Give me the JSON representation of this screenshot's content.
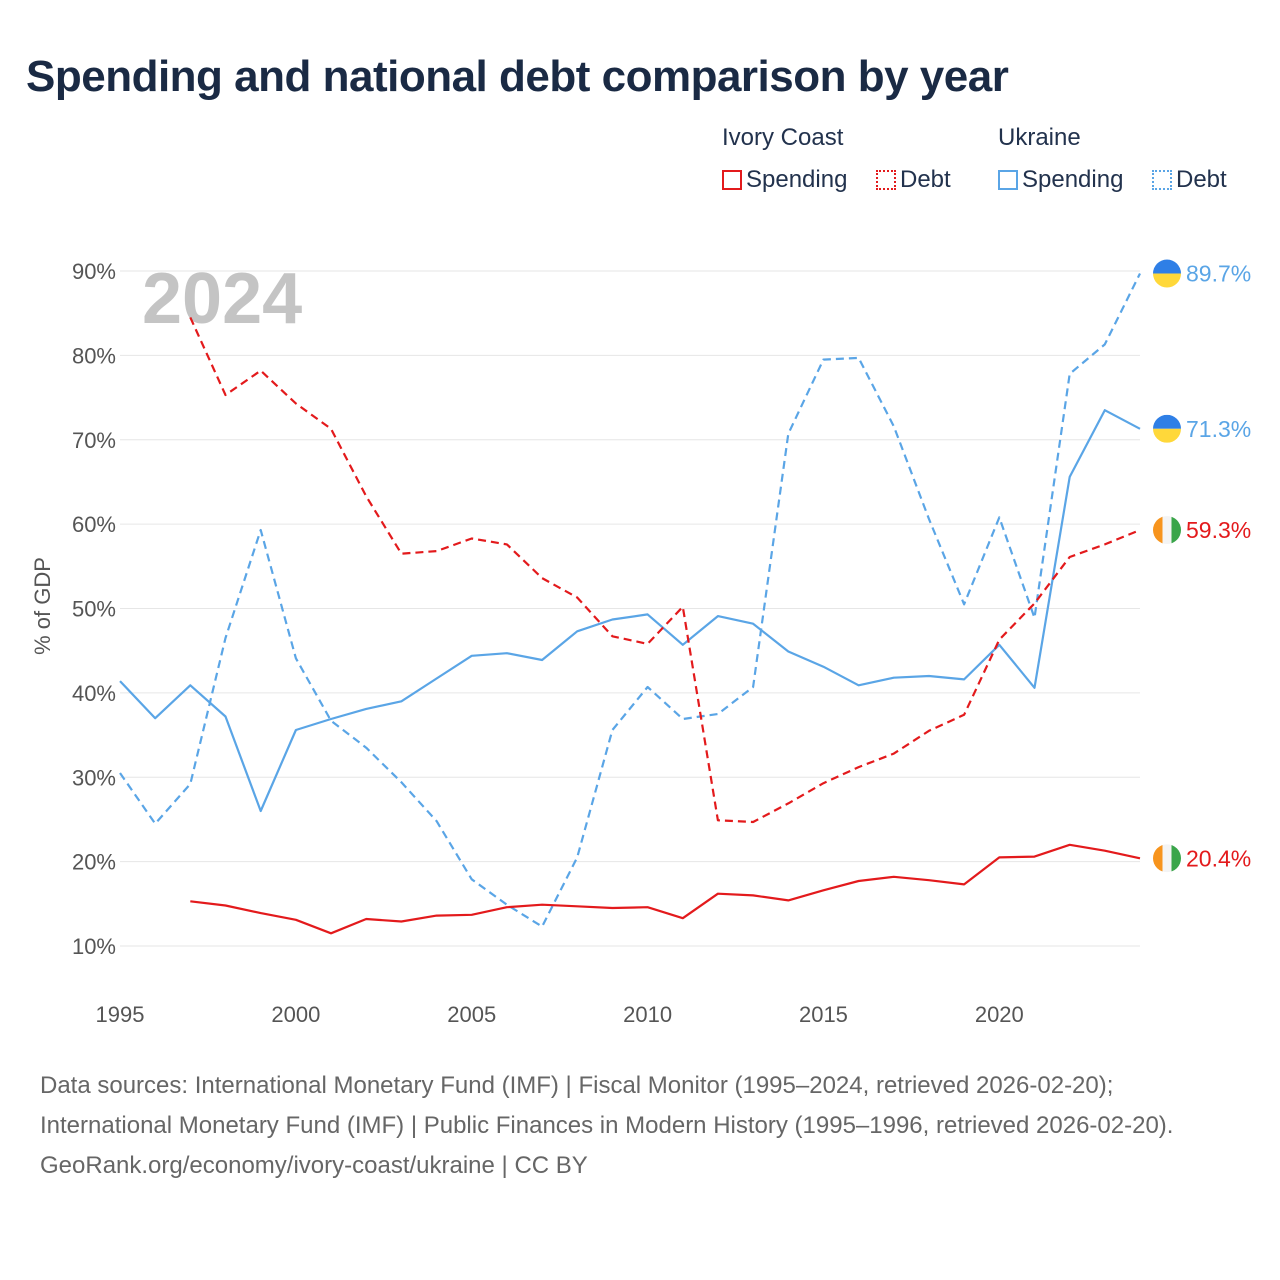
{
  "title": "Spending and national debt comparison by year",
  "legend": {
    "ivory_coast": {
      "name": "Ivory Coast",
      "spending": "Spending",
      "debt": "Debt"
    },
    "ukraine": {
      "name": "Ukraine",
      "spending": "Spending",
      "debt": "Debt"
    }
  },
  "colors": {
    "ivory_coast": "#e31a1c",
    "ukraine": "#5aa5e6",
    "grid": "#e6e6e6",
    "year_watermark": "#c4c4c4"
  },
  "chart_data": {
    "type": "line",
    "year_watermark": "2024",
    "ylabel": "% of GDP",
    "xlabel": "",
    "xlim": [
      1995,
      2024
    ],
    "ylim": [
      10,
      90
    ],
    "xticks": [
      1995,
      2000,
      2005,
      2010,
      2015,
      2020
    ],
    "xtick_labels": [
      "1995",
      "2000",
      "2005",
      "2010",
      "2015",
      "2020"
    ],
    "yticks": [
      10,
      20,
      30,
      40,
      50,
      60,
      70,
      80,
      90
    ],
    "ytick_labels": [
      "10%",
      "20%",
      "30%",
      "40%",
      "50%",
      "60%",
      "70%",
      "80%",
      "90%"
    ],
    "grid": true,
    "series": [
      {
        "name": "Ukraine Debt",
        "country": "ukraine",
        "dash": "debt",
        "x": [
          1995,
          1996,
          1997,
          1998,
          1999,
          2000,
          2001,
          2002,
          2003,
          2004,
          2005,
          2006,
          2007,
          2008,
          2009,
          2010,
          2011,
          2012,
          2013,
          2014,
          2015,
          2016,
          2017,
          2018,
          2019,
          2020,
          2021,
          2022,
          2023,
          2024
        ],
        "values": [
          30.5,
          24.5,
          29.2,
          46.5,
          59.3,
          44.1,
          36.7,
          33.5,
          29.4,
          24.8,
          17.9,
          14.9,
          12.3,
          20.5,
          35.6,
          40.7,
          36.9,
          37.5,
          40.7,
          70.7,
          79.5,
          79.7,
          71.6,
          60.6,
          50.5,
          60.8,
          48.9,
          77.8,
          81.3,
          89.7
        ],
        "end_label": "89.7%",
        "flag": "ukraine"
      },
      {
        "name": "Ukraine Spending",
        "country": "ukraine",
        "dash": "spending",
        "x": [
          1995,
          1996,
          1997,
          1998,
          1999,
          2000,
          2001,
          2002,
          2003,
          2004,
          2005,
          2006,
          2007,
          2008,
          2009,
          2010,
          2011,
          2012,
          2013,
          2014,
          2015,
          2016,
          2017,
          2018,
          2019,
          2020,
          2021,
          2022,
          2023,
          2024
        ],
        "values": [
          41.4,
          37.0,
          40.9,
          37.2,
          26.0,
          35.6,
          36.9,
          38.1,
          39.0,
          41.7,
          44.4,
          44.7,
          43.9,
          47.3,
          48.7,
          49.3,
          45.7,
          49.1,
          48.2,
          44.9,
          43.1,
          40.9,
          41.8,
          42.0,
          41.6,
          45.7,
          40.6,
          65.6,
          73.5,
          71.3
        ],
        "end_label": "71.3%",
        "flag": "ukraine"
      },
      {
        "name": "Ivory Coast Debt",
        "country": "ivory_coast",
        "dash": "debt",
        "x": [
          1997,
          1998,
          1999,
          2000,
          2001,
          2002,
          2003,
          2004,
          2005,
          2006,
          2007,
          2008,
          2009,
          2010,
          2011,
          2012,
          2013,
          2014,
          2015,
          2016,
          2017,
          2018,
          2019,
          2020,
          2021,
          2022,
          2023,
          2024
        ],
        "values": [
          84.5,
          75.3,
          78.2,
          74.3,
          71.3,
          63.3,
          56.5,
          56.8,
          58.3,
          57.6,
          53.6,
          51.3,
          46.7,
          45.8,
          50.2,
          24.9,
          24.7,
          26.9,
          29.3,
          31.2,
          32.8,
          35.5,
          37.4,
          46.3,
          50.6,
          56.1,
          57.6,
          59.3
        ],
        "end_label": "59.3%",
        "flag": "ivory_coast"
      },
      {
        "name": "Ivory Coast Spending",
        "country": "ivory_coast",
        "dash": "spending",
        "x": [
          1997,
          1998,
          1999,
          2000,
          2001,
          2002,
          2003,
          2004,
          2005,
          2006,
          2007,
          2008,
          2009,
          2010,
          2011,
          2012,
          2013,
          2014,
          2015,
          2016,
          2017,
          2018,
          2019,
          2020,
          2021,
          2022,
          2023,
          2024
        ],
        "values": [
          15.3,
          14.8,
          13.9,
          13.1,
          11.5,
          13.2,
          12.9,
          13.6,
          13.7,
          14.6,
          14.9,
          14.7,
          14.5,
          14.6,
          13.3,
          16.2,
          16.0,
          15.4,
          16.6,
          17.7,
          18.2,
          17.8,
          17.3,
          20.5,
          20.6,
          22.0,
          21.3,
          20.4
        ],
        "end_label": "20.4%",
        "flag": "ivory_coast"
      }
    ]
  },
  "footer": {
    "sources": "Data sources: International Monetary Fund (IMF) | Fiscal Monitor (1995–2024, retrieved 2026-02-20); International Monetary Fund (IMF) | Public Finances in Modern History (1995–1996, retrieved 2026-02-20).",
    "credit": "GeoRank.org/economy/ivory-coast/ukraine | CC BY"
  }
}
